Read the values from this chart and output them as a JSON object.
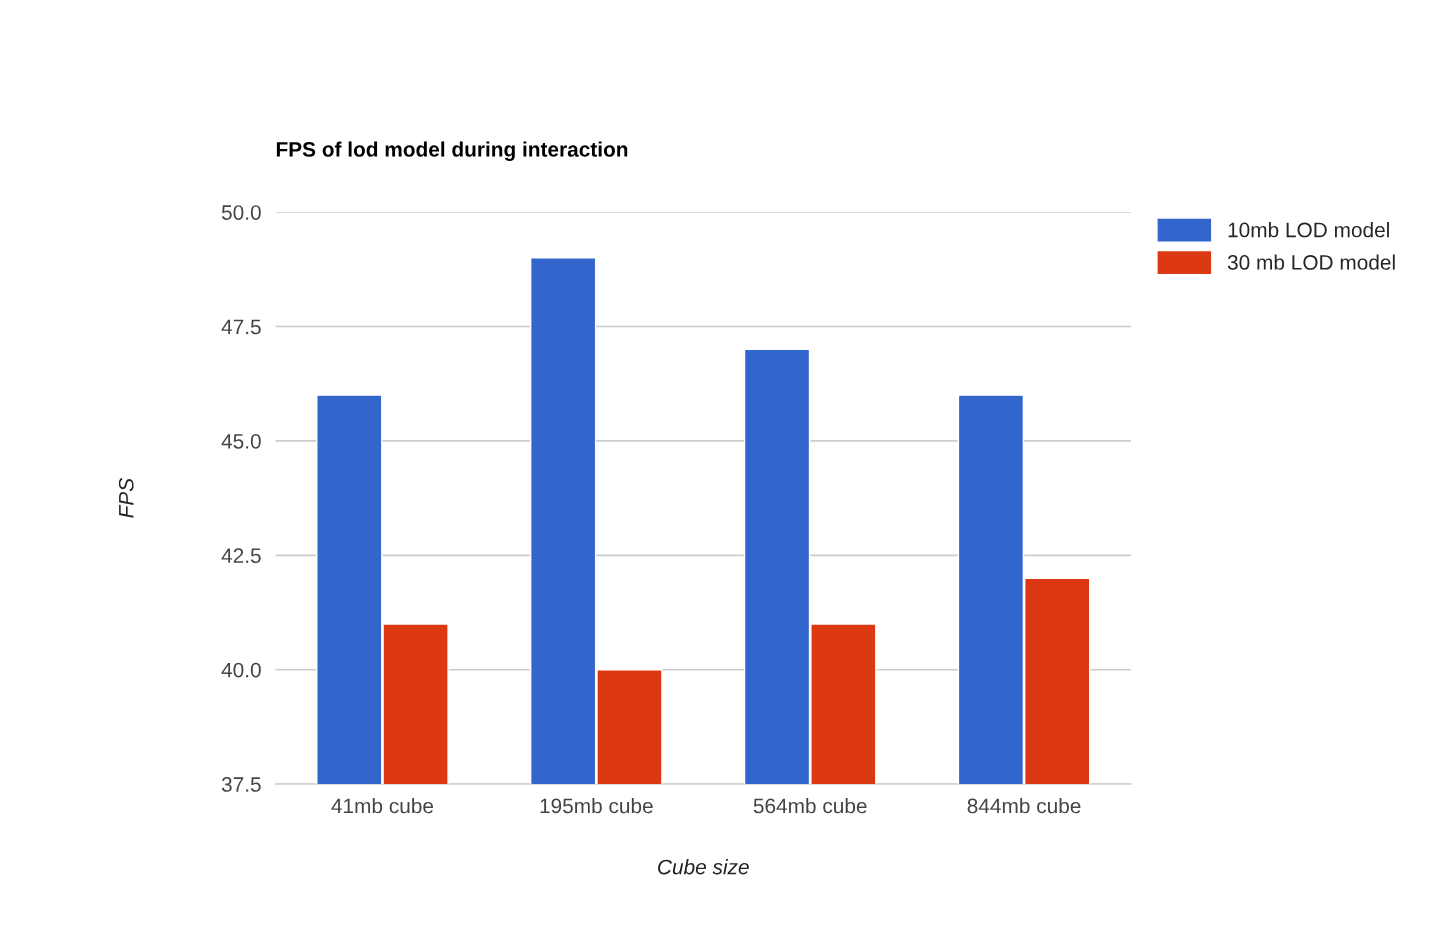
{
  "chart_data": {
    "type": "bar",
    "title": "FPS of lod model during interaction",
    "xlabel": "Cube size",
    "ylabel": "FPS",
    "categories": [
      "41mb cube",
      "195mb cube",
      "564mb cube",
      "844mb cube"
    ],
    "series": [
      {
        "name": "10mb LOD model",
        "color": "#3366cc",
        "values": [
          46,
          49,
          47,
          46
        ]
      },
      {
        "name": "30 mb LOD model",
        "color": "#dc3912",
        "values": [
          41,
          40,
          41,
          42
        ]
      }
    ],
    "ylim": [
      37.5,
      50.0
    ],
    "yticks": [
      {
        "value": 37.5,
        "label": "37.5"
      },
      {
        "value": 40.0,
        "label": "40.0"
      },
      {
        "value": 42.5,
        "label": "42.5"
      },
      {
        "value": 45.0,
        "label": "45.0"
      },
      {
        "value": 47.5,
        "label": "47.5"
      },
      {
        "value": 50.0,
        "label": "50.0"
      }
    ],
    "grid": "y",
    "legend": "right"
  }
}
